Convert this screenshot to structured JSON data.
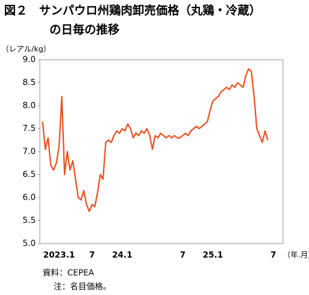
{
  "chart_data": {
    "type": "line",
    "title": [
      "図２　サンパウロ州鶏肉卸売価格（丸鶏・冷蔵）",
      "の日毎の推移"
    ],
    "y_unit": "（レアル/kg）",
    "x_unit": "（年.月）",
    "source": "資料：CEPEA",
    "note": "注：名目価格。",
    "categories": [
      null,
      null,
      null,
      null,
      null,
      null,
      "2023.1",
      null,
      null,
      null,
      null,
      null,
      null,
      null,
      null,
      null,
      null,
      null,
      "7",
      null,
      null,
      null,
      null,
      null,
      null,
      null,
      null,
      null,
      null,
      "24.1",
      null,
      null,
      null,
      null,
      null,
      null,
      null,
      null,
      null,
      null,
      null,
      null,
      null,
      null,
      null,
      null,
      null,
      null,
      null,
      null,
      null,
      "7",
      null,
      null,
      null,
      null,
      null,
      null,
      null,
      null,
      null,
      null,
      "25.1",
      null,
      null,
      null,
      null,
      null,
      null,
      null,
      null,
      null,
      null,
      null,
      null,
      null,
      null,
      null,
      null,
      null,
      null,
      null,
      null,
      null,
      "7"
    ],
    "series": [
      {
        "color": "#e8501e",
        "values": [
          7.65,
          7.05,
          7.3,
          6.7,
          6.6,
          6.75,
          7.1,
          8.2,
          6.5,
          7.0,
          6.6,
          6.8,
          6.4,
          6.0,
          5.95,
          6.15,
          5.85,
          5.7,
          5.85,
          5.8,
          6.1,
          6.5,
          6.4,
          7.2,
          7.25,
          7.2,
          7.35,
          7.45,
          7.4,
          7.5,
          7.45,
          7.6,
          7.5,
          7.3,
          7.4,
          7.35,
          7.45,
          7.4,
          7.5,
          7.35,
          7.05,
          7.35,
          7.3,
          7.4,
          7.35,
          7.3,
          7.35,
          7.3,
          7.35,
          7.3,
          7.3,
          7.35,
          7.4,
          7.35,
          7.45,
          7.5,
          7.55,
          7.5,
          7.55,
          7.6,
          7.65,
          7.9,
          8.1,
          8.15,
          8.2,
          8.3,
          8.35,
          8.4,
          8.35,
          8.45,
          8.4,
          8.5,
          8.45,
          8.4,
          8.65,
          8.8,
          8.75,
          8.2,
          7.5,
          7.35,
          7.2,
          7.45,
          7.25,
          null,
          null
        ]
      }
    ],
    "ylim": [
      5,
      9
    ],
    "yticks": [
      {
        "value": 5,
        "label": "5.0"
      },
      {
        "value": 5.5,
        "label": "5.5"
      },
      {
        "value": 6,
        "label": "6.0"
      },
      {
        "value": 6.5,
        "label": "6.5"
      },
      {
        "value": 7,
        "label": "7.0"
      },
      {
        "value": 7.5,
        "label": "7.5"
      },
      {
        "value": 8,
        "label": "8.0"
      },
      {
        "value": 8.5,
        "label": "8.5"
      },
      {
        "value": 9,
        "label": "9.0"
      }
    ]
  }
}
